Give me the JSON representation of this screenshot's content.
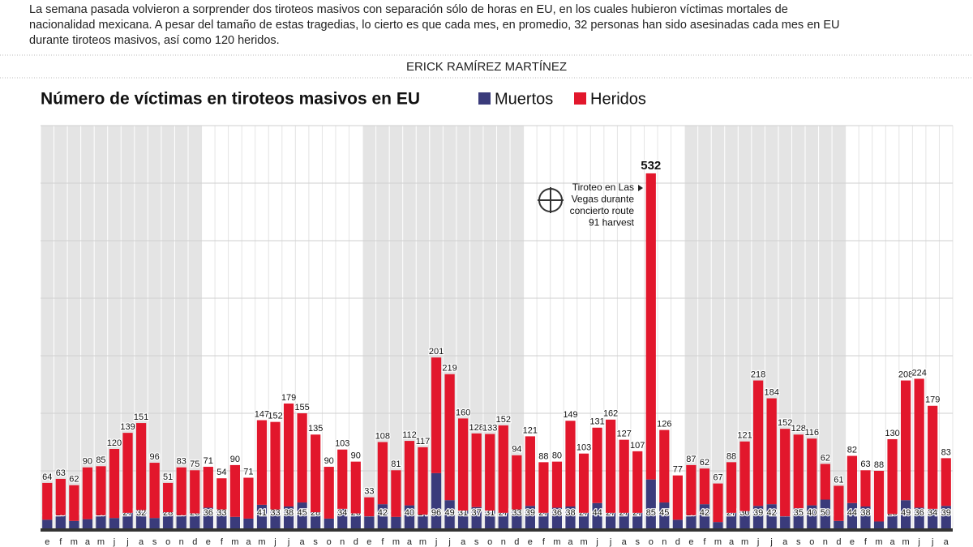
{
  "header": {
    "intro": "La semana pasada volvieron a sorprender dos tiroteos masivos con separación sólo de horas en EU, en los cuales hubieron víctimas mortales de nacionalidad mexicana. A pesar del tamaño de estas tragedias, lo cierto es que cada mes, en promedio, 32 personas han sido asesinadas cada mes en EU durante tiroteos masivos, así como 120 heridos.",
    "author": "ERICK RAMÍREZ MARTÍNEZ"
  },
  "chart_data": {
    "type": "stacked_bar",
    "title": "Número de víctimas en tiroteos masivos en EU",
    "categories": [
      "e",
      "f",
      "m",
      "a",
      "m",
      "j",
      "j",
      "a",
      "s",
      "o",
      "n",
      "d",
      "e",
      "f",
      "m",
      "a",
      "m",
      "j",
      "j",
      "a",
      "s",
      "o",
      "n",
      "d",
      "e",
      "f",
      "m",
      "a",
      "m",
      "j",
      "j",
      "a",
      "s",
      "o",
      "n",
      "d",
      "e",
      "f",
      "m",
      "a",
      "m",
      "j",
      "j",
      "a",
      "s",
      "o",
      "n",
      "d",
      "e",
      "f",
      "m",
      "a",
      "m",
      "j",
      "j",
      "a",
      "s",
      "o",
      "n",
      "d",
      "e",
      "f",
      "m",
      "a",
      "m",
      "j",
      "j",
      "a"
    ],
    "series": [
      {
        "name": "Muertos",
        "color": "#3a3b7b",
        "values": [
          15,
          23,
          13,
          16,
          23,
          18,
          27,
          32,
          18,
          28,
          23,
          26,
          36,
          33,
          20,
          17,
          41,
          33,
          38,
          45,
          28,
          17,
          34,
          26,
          21,
          42,
          20,
          40,
          24,
          96,
          49,
          31,
          37,
          31,
          27,
          33,
          39,
          27,
          36,
          38,
          27,
          44,
          27,
          27,
          27,
          85,
          45,
          15,
          23,
          42,
          11,
          27,
          30,
          39,
          42,
          21,
          35,
          40,
          50,
          13,
          44,
          38,
          12,
          25,
          49,
          36,
          34,
          39
        ]
      },
      {
        "name": "Heridos",
        "color": "#e2172c",
        "values": [
          64,
          63,
          62,
          90,
          85,
          120,
          139,
          151,
          96,
          51,
          83,
          75,
          71,
          54,
          90,
          71,
          147,
          152,
          179,
          155,
          135,
          90,
          103,
          90,
          33,
          108,
          81,
          112,
          117,
          201,
          219,
          160,
          128,
          133,
          152,
          94,
          121,
          88,
          80,
          149,
          103,
          131,
          162,
          127,
          107,
          532,
          126,
          77,
          87,
          62,
          67,
          88,
          121,
          218,
          184,
          152,
          128,
          116,
          62,
          61,
          82,
          63,
          88,
          130,
          208,
          224,
          179,
          83
        ]
      }
    ],
    "ylim": [
      0,
      700
    ],
    "grid_lines": [
      100,
      200,
      300,
      400,
      500,
      600,
      700
    ],
    "grid": true,
    "annotation": [
      "Tiroteo en Las",
      "Vegas durante",
      "concierto route",
      "91 harvest"
    ]
  }
}
